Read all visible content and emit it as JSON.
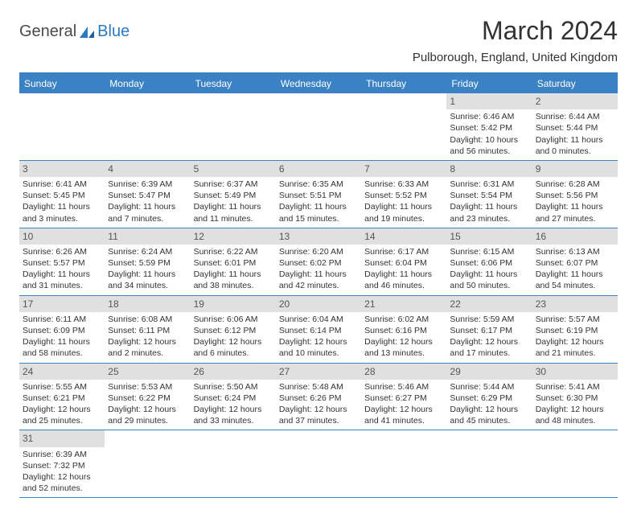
{
  "logo": {
    "part1": "General",
    "part2": "Blue"
  },
  "title": "March 2024",
  "location": "Pulborough, England, United Kingdom",
  "colors": {
    "header_bg": "#3b82c4",
    "daynum_bg": "#e0e0e0",
    "border": "#3b82c4",
    "text": "#333333"
  },
  "dayNames": [
    "Sunday",
    "Monday",
    "Tuesday",
    "Wednesday",
    "Thursday",
    "Friday",
    "Saturday"
  ],
  "weeks": [
    [
      null,
      null,
      null,
      null,
      null,
      {
        "n": "1",
        "sr": "6:46 AM",
        "ss": "5:42 PM",
        "dh": "10",
        "dm": "56"
      },
      {
        "n": "2",
        "sr": "6:44 AM",
        "ss": "5:44 PM",
        "dh": "11",
        "dm": "0"
      }
    ],
    [
      {
        "n": "3",
        "sr": "6:41 AM",
        "ss": "5:45 PM",
        "dh": "11",
        "dm": "3"
      },
      {
        "n": "4",
        "sr": "6:39 AM",
        "ss": "5:47 PM",
        "dh": "11",
        "dm": "7"
      },
      {
        "n": "5",
        "sr": "6:37 AM",
        "ss": "5:49 PM",
        "dh": "11",
        "dm": "11"
      },
      {
        "n": "6",
        "sr": "6:35 AM",
        "ss": "5:51 PM",
        "dh": "11",
        "dm": "15"
      },
      {
        "n": "7",
        "sr": "6:33 AM",
        "ss": "5:52 PM",
        "dh": "11",
        "dm": "19"
      },
      {
        "n": "8",
        "sr": "6:31 AM",
        "ss": "5:54 PM",
        "dh": "11",
        "dm": "23"
      },
      {
        "n": "9",
        "sr": "6:28 AM",
        "ss": "5:56 PM",
        "dh": "11",
        "dm": "27"
      }
    ],
    [
      {
        "n": "10",
        "sr": "6:26 AM",
        "ss": "5:57 PM",
        "dh": "11",
        "dm": "31"
      },
      {
        "n": "11",
        "sr": "6:24 AM",
        "ss": "5:59 PM",
        "dh": "11",
        "dm": "34"
      },
      {
        "n": "12",
        "sr": "6:22 AM",
        "ss": "6:01 PM",
        "dh": "11",
        "dm": "38"
      },
      {
        "n": "13",
        "sr": "6:20 AM",
        "ss": "6:02 PM",
        "dh": "11",
        "dm": "42"
      },
      {
        "n": "14",
        "sr": "6:17 AM",
        "ss": "6:04 PM",
        "dh": "11",
        "dm": "46"
      },
      {
        "n": "15",
        "sr": "6:15 AM",
        "ss": "6:06 PM",
        "dh": "11",
        "dm": "50"
      },
      {
        "n": "16",
        "sr": "6:13 AM",
        "ss": "6:07 PM",
        "dh": "11",
        "dm": "54"
      }
    ],
    [
      {
        "n": "17",
        "sr": "6:11 AM",
        "ss": "6:09 PM",
        "dh": "11",
        "dm": "58"
      },
      {
        "n": "18",
        "sr": "6:08 AM",
        "ss": "6:11 PM",
        "dh": "12",
        "dm": "2"
      },
      {
        "n": "19",
        "sr": "6:06 AM",
        "ss": "6:12 PM",
        "dh": "12",
        "dm": "6"
      },
      {
        "n": "20",
        "sr": "6:04 AM",
        "ss": "6:14 PM",
        "dh": "12",
        "dm": "10"
      },
      {
        "n": "21",
        "sr": "6:02 AM",
        "ss": "6:16 PM",
        "dh": "12",
        "dm": "13"
      },
      {
        "n": "22",
        "sr": "5:59 AM",
        "ss": "6:17 PM",
        "dh": "12",
        "dm": "17"
      },
      {
        "n": "23",
        "sr": "5:57 AM",
        "ss": "6:19 PM",
        "dh": "12",
        "dm": "21"
      }
    ],
    [
      {
        "n": "24",
        "sr": "5:55 AM",
        "ss": "6:21 PM",
        "dh": "12",
        "dm": "25"
      },
      {
        "n": "25",
        "sr": "5:53 AM",
        "ss": "6:22 PM",
        "dh": "12",
        "dm": "29"
      },
      {
        "n": "26",
        "sr": "5:50 AM",
        "ss": "6:24 PM",
        "dh": "12",
        "dm": "33"
      },
      {
        "n": "27",
        "sr": "5:48 AM",
        "ss": "6:26 PM",
        "dh": "12",
        "dm": "37"
      },
      {
        "n": "28",
        "sr": "5:46 AM",
        "ss": "6:27 PM",
        "dh": "12",
        "dm": "41"
      },
      {
        "n": "29",
        "sr": "5:44 AM",
        "ss": "6:29 PM",
        "dh": "12",
        "dm": "45"
      },
      {
        "n": "30",
        "sr": "5:41 AM",
        "ss": "6:30 PM",
        "dh": "12",
        "dm": "48"
      }
    ],
    [
      {
        "n": "31",
        "sr": "6:39 AM",
        "ss": "7:32 PM",
        "dh": "12",
        "dm": "52"
      },
      null,
      null,
      null,
      null,
      null,
      null
    ]
  ],
  "labels": {
    "sunrise": "Sunrise:",
    "sunset": "Sunset:",
    "daylight": "Daylight:",
    "hours": "hours",
    "and": "and",
    "minutes": "minutes."
  }
}
